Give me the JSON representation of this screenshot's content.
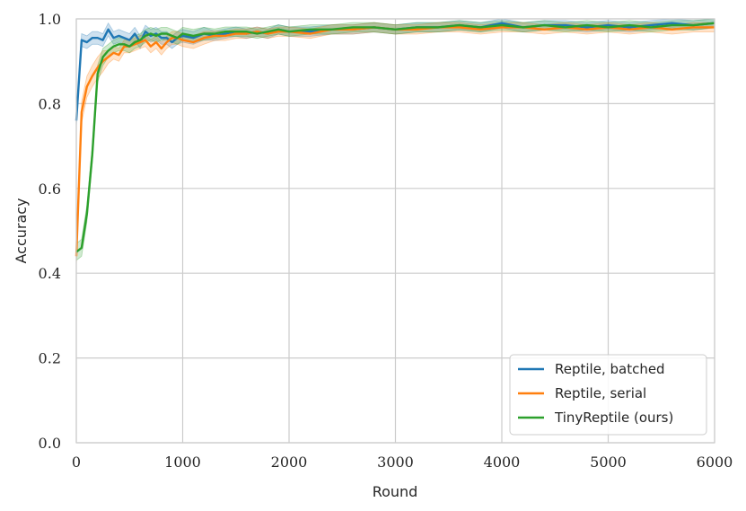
{
  "chart_data": {
    "type": "line",
    "title": "",
    "xlabel": "Round",
    "ylabel": "Accuracy",
    "xlim": [
      0,
      6000
    ],
    "ylim": [
      0.0,
      1.0
    ],
    "xticks": [
      0,
      1000,
      2000,
      3000,
      4000,
      5000,
      6000
    ],
    "yticks": [
      0.0,
      0.2,
      0.4,
      0.6,
      0.8,
      1.0
    ],
    "xtick_labels": [
      "0",
      "1000",
      "2000",
      "3000",
      "4000",
      "5000",
      "6000"
    ],
    "ytick_labels": [
      "0.0",
      "0.2",
      "0.4",
      "0.6",
      "0.8",
      "1.0"
    ],
    "grid": true,
    "legend_position": "bottom-right",
    "series": [
      {
        "name": "Reptile, batched",
        "color": "#1f77b4",
        "x": [
          0,
          50,
          100,
          150,
          200,
          250,
          300,
          350,
          400,
          450,
          500,
          550,
          600,
          650,
          700,
          750,
          800,
          850,
          900,
          950,
          1000,
          1100,
          1200,
          1300,
          1400,
          1500,
          1600,
          1700,
          1800,
          1900,
          2000,
          2200,
          2400,
          2600,
          2800,
          3000,
          3200,
          3400,
          3600,
          3800,
          4000,
          4200,
          4400,
          4600,
          4800,
          5000,
          5200,
          5400,
          5600,
          5800,
          6000
        ],
        "y": [
          0.76,
          0.95,
          0.945,
          0.955,
          0.955,
          0.95,
          0.975,
          0.955,
          0.96,
          0.955,
          0.95,
          0.965,
          0.945,
          0.97,
          0.96,
          0.965,
          0.955,
          0.955,
          0.945,
          0.955,
          0.96,
          0.955,
          0.965,
          0.96,
          0.965,
          0.97,
          0.965,
          0.97,
          0.965,
          0.975,
          0.97,
          0.97,
          0.975,
          0.975,
          0.98,
          0.975,
          0.98,
          0.98,
          0.985,
          0.98,
          0.99,
          0.98,
          0.985,
          0.985,
          0.98,
          0.985,
          0.98,
          0.985,
          0.99,
          0.985,
          0.99
        ]
      },
      {
        "name": "Reptile, serial",
        "color": "#ff7f0e",
        "x": [
          0,
          50,
          100,
          150,
          200,
          250,
          300,
          350,
          400,
          450,
          500,
          550,
          600,
          650,
          700,
          750,
          800,
          850,
          900,
          950,
          1000,
          1100,
          1200,
          1300,
          1400,
          1500,
          1600,
          1700,
          1800,
          1900,
          2000,
          2200,
          2400,
          2600,
          2800,
          3000,
          3200,
          3400,
          3600,
          3800,
          4000,
          4200,
          4400,
          4600,
          4800,
          5000,
          5200,
          5400,
          5600,
          5800,
          6000
        ],
        "y": [
          0.44,
          0.78,
          0.84,
          0.865,
          0.885,
          0.9,
          0.91,
          0.92,
          0.915,
          0.935,
          0.935,
          0.94,
          0.945,
          0.95,
          0.935,
          0.945,
          0.93,
          0.945,
          0.955,
          0.955,
          0.95,
          0.945,
          0.955,
          0.96,
          0.96,
          0.965,
          0.965,
          0.97,
          0.965,
          0.97,
          0.97,
          0.965,
          0.975,
          0.975,
          0.98,
          0.975,
          0.975,
          0.98,
          0.98,
          0.975,
          0.98,
          0.98,
          0.975,
          0.98,
          0.975,
          0.98,
          0.975,
          0.98,
          0.975,
          0.98,
          0.98
        ]
      },
      {
        "name": "TinyReptile (ours)",
        "color": "#2ca02c",
        "x": [
          0,
          50,
          100,
          150,
          200,
          250,
          300,
          350,
          400,
          450,
          500,
          550,
          600,
          650,
          700,
          750,
          800,
          850,
          900,
          950,
          1000,
          1100,
          1200,
          1300,
          1400,
          1500,
          1600,
          1700,
          1800,
          1900,
          2000,
          2200,
          2400,
          2600,
          2800,
          3000,
          3200,
          3400,
          3600,
          3800,
          4000,
          4200,
          4400,
          4600,
          4800,
          5000,
          5200,
          5400,
          5600,
          5800,
          6000
        ],
        "y": [
          0.45,
          0.46,
          0.54,
          0.68,
          0.87,
          0.91,
          0.925,
          0.935,
          0.94,
          0.94,
          0.935,
          0.945,
          0.95,
          0.96,
          0.965,
          0.96,
          0.965,
          0.965,
          0.96,
          0.955,
          0.965,
          0.96,
          0.965,
          0.965,
          0.97,
          0.97,
          0.97,
          0.965,
          0.97,
          0.975,
          0.97,
          0.975,
          0.975,
          0.98,
          0.98,
          0.975,
          0.98,
          0.98,
          0.985,
          0.98,
          0.985,
          0.98,
          0.985,
          0.98,
          0.985,
          0.98,
          0.985,
          0.98,
          0.985,
          0.985,
          0.99
        ]
      }
    ]
  }
}
